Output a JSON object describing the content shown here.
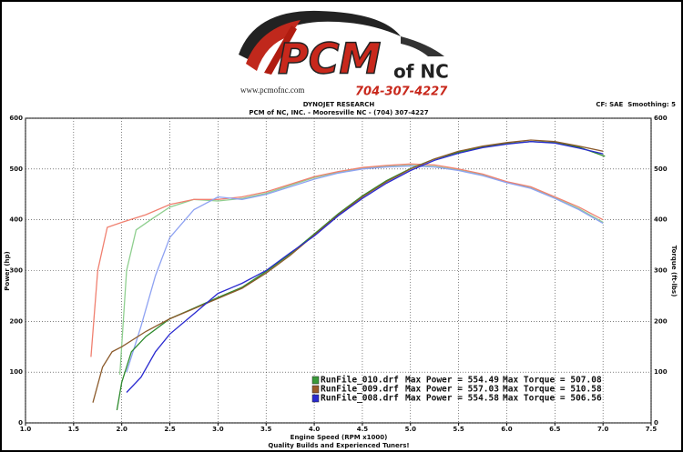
{
  "logo": {
    "brand": "PCM",
    "suffix": "of NC",
    "url": "www.pcmofnc.com",
    "phone": "704-307-4227"
  },
  "chart_data": {
    "type": "line",
    "title": "DYNOJET RESEARCH",
    "subtitle": "PCM of NC, INC. - Mooresville NC - (704) 307-4227",
    "settings_note": "CF: SAE  Smoothing: 5",
    "footer": "Quality Builds and Experienced Tuners!",
    "x_label": "Engine Speed (RPM x1000)",
    "y_label": "Power (hp)",
    "y2_label": "Torque (ft-lbs)",
    "xlim": [
      1.0,
      7.5
    ],
    "xticks": [
      {
        "value": 1.0,
        "label": "1.0"
      },
      1.5,
      {
        "value": 2.0,
        "label": "2.0"
      },
      2.5,
      {
        "value": 3.0,
        "label": "3.0"
      },
      3.5,
      {
        "value": 4.0,
        "label": "4.0"
      },
      4.5,
      {
        "value": 5.0,
        "label": "5.0"
      },
      5.5,
      {
        "value": 6.0,
        "label": "6.0"
      },
      6.5,
      {
        "value": 7.0,
        "label": "7.0"
      },
      7.5
    ],
    "ylim": [
      0,
      600
    ],
    "yticks": [
      0,
      100,
      200,
      300,
      400,
      500,
      600
    ],
    "y2lim": [
      0,
      600
    ],
    "y2ticks": [
      0,
      100,
      200,
      300,
      400,
      500,
      600
    ],
    "grid": true,
    "legend": [
      {
        "file": "RunFile_010.drf",
        "power": "Max Power = 554.49",
        "torque": "Max Torque = 507.08",
        "color": "#3a9a3a"
      },
      {
        "file": "RunFile_009.drf",
        "power": "Max Power = 557.03",
        "torque": "Max Torque = 510.58",
        "color": "#9a5a2a"
      },
      {
        "file": "RunFile_008.drf",
        "power": "Max Power = 554.58",
        "torque": "Max Torque = 506.56",
        "color": "#2a2ad0"
      }
    ],
    "series": [
      {
        "color": "#8fcf8f",
        "axis": "y2",
        "x": [
          1.98,
          2.05,
          2.15,
          2.3,
          2.5,
          2.75,
          3.0,
          3.25,
          3.5,
          3.75,
          4.0,
          4.25,
          4.5,
          4.75,
          5.0,
          5.25,
          5.5,
          5.75,
          6.0,
          6.25,
          6.5,
          6.75,
          7.0
        ],
        "values": [
          95,
          300,
          380,
          400,
          425,
          440,
          437,
          442,
          452,
          468,
          483,
          494,
          501,
          505,
          507,
          505,
          498,
          488,
          474,
          463,
          443,
          422,
          395
        ]
      },
      {
        "color": "#f08070",
        "axis": "y2",
        "x": [
          1.68,
          1.75,
          1.85,
          2.0,
          2.25,
          2.5,
          2.75,
          3.0,
          3.25,
          3.5,
          3.75,
          4.0,
          4.25,
          4.5,
          4.75,
          5.0,
          5.25,
          5.5,
          5.75,
          6.0,
          6.25,
          6.5,
          6.75,
          7.0
        ],
        "values": [
          130,
          300,
          385,
          395,
          410,
          430,
          440,
          440,
          445,
          455,
          470,
          485,
          495,
          503,
          507,
          510,
          508,
          500,
          490,
          475,
          465,
          445,
          425,
          400
        ]
      },
      {
        "color": "#8ea2f2",
        "axis": "y2",
        "x": [
          2.05,
          2.2,
          2.35,
          2.5,
          2.75,
          3.0,
          3.25,
          3.5,
          3.75,
          4.0,
          4.25,
          4.5,
          4.75,
          5.0,
          5.25,
          5.5,
          5.75,
          6.0,
          6.25,
          6.5,
          6.75,
          7.0
        ],
        "values": [
          100,
          190,
          290,
          365,
          420,
          445,
          440,
          450,
          465,
          480,
          492,
          500,
          504,
          506,
          504,
          497,
          487,
          473,
          462,
          442,
          420,
          393
        ]
      },
      {
        "color": "#2e8b2e",
        "axis": "y",
        "x": [
          1.95,
          2.0,
          2.1,
          2.25,
          2.5,
          2.75,
          3.0,
          3.25,
          3.5,
          3.75,
          4.0,
          4.25,
          4.5,
          4.75,
          5.0,
          5.25,
          5.5,
          5.75,
          6.0,
          6.25,
          6.5,
          6.75,
          7.02
        ],
        "values": [
          25,
          80,
          140,
          170,
          205,
          226,
          247,
          267,
          298,
          333,
          372,
          412,
          447,
          477,
          501,
          520,
          533,
          543,
          550,
          554,
          552,
          543,
          525
        ]
      },
      {
        "color": "#8b5a2b",
        "axis": "y",
        "x": [
          1.7,
          1.8,
          1.9,
          2.0,
          2.25,
          2.5,
          2.75,
          3.0,
          3.25,
          3.5,
          3.75,
          4.0,
          4.25,
          4.5,
          4.75,
          5.0,
          5.25,
          5.5,
          5.75,
          6.0,
          6.25,
          6.5,
          6.75,
          7.0
        ],
        "values": [
          40,
          110,
          140,
          150,
          180,
          205,
          225,
          245,
          265,
          295,
          330,
          370,
          410,
          445,
          475,
          500,
          520,
          535,
          545,
          552,
          557,
          554,
          545,
          535
        ]
      },
      {
        "color": "#2a2ad0",
        "axis": "y",
        "x": [
          2.05,
          2.2,
          2.35,
          2.5,
          2.75,
          3.0,
          3.25,
          3.5,
          3.75,
          4.0,
          4.25,
          4.5,
          4.75,
          5.0,
          5.25,
          5.5,
          5.75,
          6.0,
          6.25,
          6.5,
          6.75,
          7.0
        ],
        "values": [
          60,
          90,
          140,
          175,
          215,
          255,
          275,
          300,
          335,
          368,
          408,
          442,
          472,
          497,
          517,
          531,
          542,
          549,
          554,
          551,
          541,
          530
        ]
      }
    ]
  }
}
